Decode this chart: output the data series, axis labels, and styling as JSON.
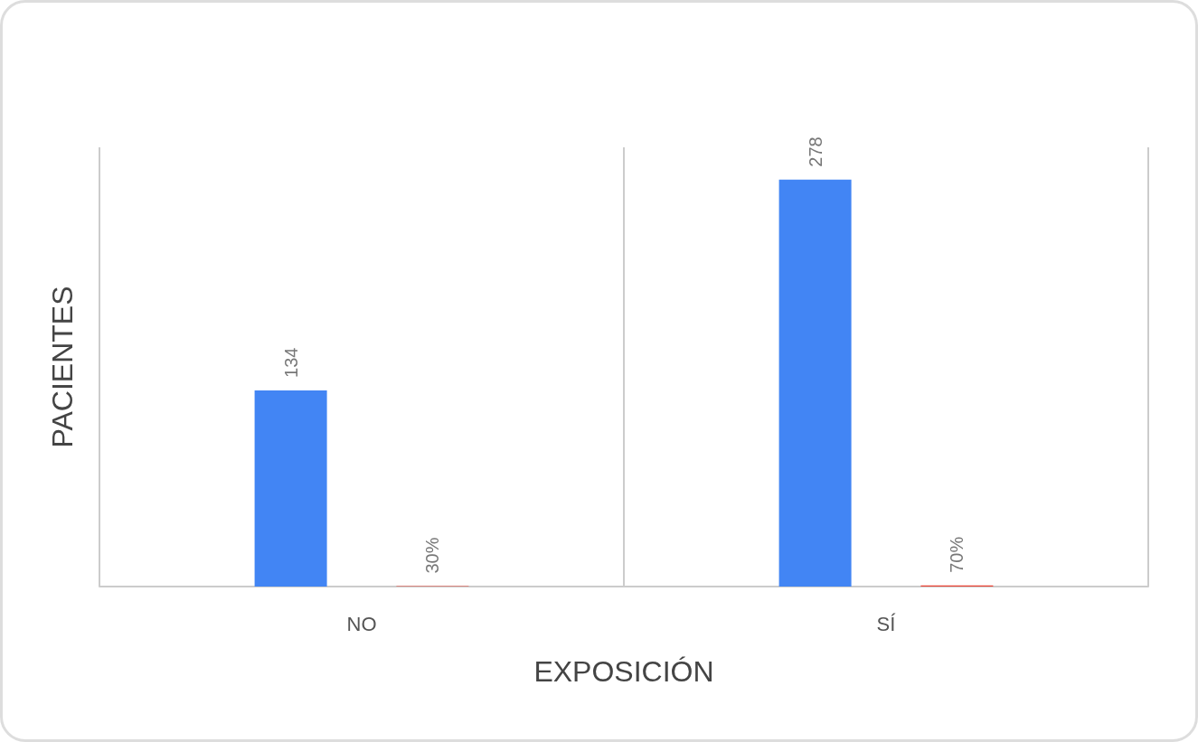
{
  "chart_data": {
    "type": "bar",
    "xlabel": "EXPOSICIÓN",
    "ylabel": "PACIENTES",
    "categories": [
      "NO",
      "SÍ"
    ],
    "series": [
      {
        "color": "#4285f4",
        "values": [
          134,
          278
        ],
        "value_labels": [
          "134",
          "278"
        ]
      },
      {
        "values": [
          0.3,
          0.7
        ],
        "value_labels": [
          "30%",
          "70%"
        ]
      }
    ],
    "grid": "x"
  }
}
